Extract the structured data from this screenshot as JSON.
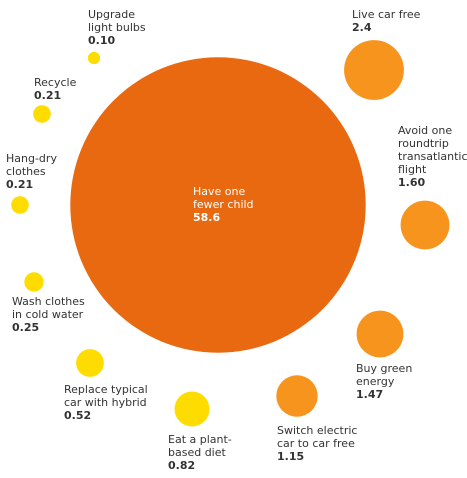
{
  "chart_data": {
    "type": "bubble",
    "title": "",
    "colors": {
      "large": "#e8690f",
      "mid": "#f7941d",
      "small": "#ffdc00"
    },
    "items": [
      {
        "label": [
          "Have one",
          "fewer child"
        ],
        "value": 58.6,
        "display": "58.6"
      },
      {
        "label": [
          "Live car free"
        ],
        "value": 2.4,
        "display": "2.4"
      },
      {
        "label": [
          "Avoid one",
          "roundtrip",
          "transatlantic",
          "flight"
        ],
        "value": 1.6,
        "display": "1.60"
      },
      {
        "label": [
          "Buy green",
          "energy"
        ],
        "value": 1.47,
        "display": "1.47"
      },
      {
        "label": [
          "Switch electric",
          "car to car free"
        ],
        "value": 1.15,
        "display": "1.15"
      },
      {
        "label": [
          "Eat a plant-",
          "based diet"
        ],
        "value": 0.82,
        "display": "0.82"
      },
      {
        "label": [
          "Replace typical",
          "car with hybrid"
        ],
        "value": 0.52,
        "display": "0.52"
      },
      {
        "label": [
          "Wash clothes",
          "in cold water"
        ],
        "value": 0.25,
        "display": "0.25"
      },
      {
        "label": [
          "Hang-dry",
          "clothes"
        ],
        "value": 0.21,
        "display": "0.21"
      },
      {
        "label": [
          "Recycle"
        ],
        "value": 0.21,
        "display": "0.21"
      },
      {
        "label": [
          "Upgrade",
          "light bulbs"
        ],
        "value": 0.1,
        "display": "0.10"
      }
    ]
  }
}
